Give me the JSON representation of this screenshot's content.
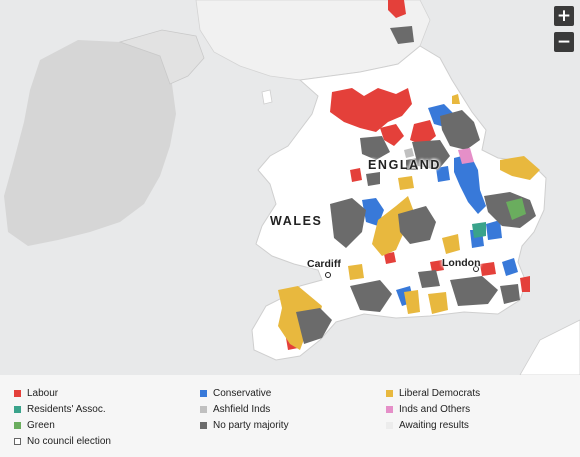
{
  "map": {
    "labels": {
      "england": "ENGLAND",
      "wales": "WALES",
      "cardiff": "Cardiff",
      "london": "London"
    },
    "zoom_in": "+",
    "zoom_out": "−"
  },
  "colors": {
    "sea": "#e8e9ea",
    "land": "#ffffff",
    "ireland": "#d6d6d6",
    "boundary": "#c9c9c9",
    "labour": "#e4403a",
    "residents": "#3aa38b",
    "green": "#6aad5e",
    "conservative": "#3879d9",
    "ashfield": "#c0c0c0",
    "no_majority": "#6b6b6b",
    "lib_dem": "#e8b83e",
    "inds_others": "#e58fc8",
    "awaiting": "#ececec",
    "no_election": "#ffffff"
  },
  "legend": [
    {
      "key": "labour",
      "label": "Labour"
    },
    {
      "key": "conservative",
      "label": "Conservative"
    },
    {
      "key": "lib_dem",
      "label": "Liberal Democrats"
    },
    {
      "key": "residents",
      "label": "Residents' Assoc."
    },
    {
      "key": "ashfield",
      "label": "Ashfield Inds"
    },
    {
      "key": "inds_others",
      "label": "Inds and Others"
    },
    {
      "key": "green",
      "label": "Green"
    },
    {
      "key": "no_majority",
      "label": "No party majority"
    },
    {
      "key": "awaiting",
      "label": "Awaiting results"
    },
    {
      "key": "no_election",
      "label": "No council election"
    }
  ]
}
